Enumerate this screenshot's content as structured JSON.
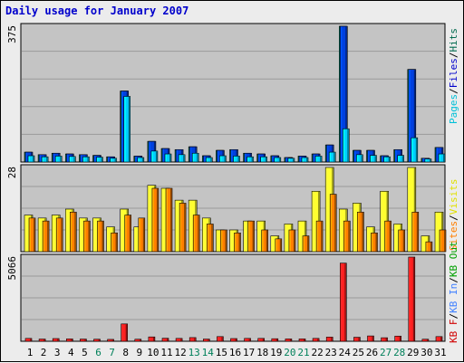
{
  "window": {
    "title": "Daily usage for January 2007"
  },
  "chart_data": [
    {
      "type": "bar",
      "panel": "top",
      "title": "Daily usage for January 2007",
      "ymax_label": "375",
      "ylim": [
        0,
        375
      ],
      "right_labels": [
        {
          "text": "Pages",
          "color": "#00c0d8"
        },
        {
          "text": "/",
          "color": "#000000"
        },
        {
          "text": "Files",
          "color": "#0000cc"
        },
        {
          "text": "/",
          "color": "#000000"
        },
        {
          "text": "Hits",
          "color": "#006a4e"
        }
      ],
      "categories": [
        "1",
        "2",
        "3",
        "4",
        "5",
        "6",
        "7",
        "8",
        "9",
        "10",
        "11",
        "12",
        "13",
        "14",
        "15",
        "16",
        "17",
        "18",
        "19",
        "20",
        "21",
        "22",
        "23",
        "24",
        "25",
        "26",
        "27",
        "28",
        "29",
        "30",
        "31"
      ],
      "series": [
        {
          "name": "Hits",
          "color": "#00805a",
          "values": [
            25,
            18,
            22,
            20,
            18,
            16,
            12,
            195,
            14,
            55,
            35,
            32,
            40,
            15,
            30,
            32,
            22,
            20,
            15,
            10,
            14,
            20,
            45,
            375,
            30,
            30,
            15,
            32,
            255,
            8,
            38
          ]
        },
        {
          "name": "Files",
          "color": "#0040e0",
          "values": [
            25,
            18,
            22,
            20,
            18,
            16,
            12,
            195,
            14,
            55,
            35,
            32,
            40,
            15,
            30,
            32,
            22,
            20,
            15,
            10,
            14,
            20,
            45,
            375,
            30,
            30,
            15,
            32,
            255,
            8,
            38
          ]
        },
        {
          "name": "Pages",
          "color": "#00d0ff",
          "values": [
            15,
            12,
            14,
            13,
            12,
            11,
            8,
            180,
            10,
            28,
            20,
            18,
            22,
            10,
            15,
            14,
            12,
            12,
            10,
            8,
            10,
            14,
            25,
            90,
            18,
            16,
            12,
            16,
            65,
            6,
            20
          ]
        }
      ]
    },
    {
      "type": "bar",
      "panel": "middle",
      "ymax_label": "28",
      "ylim": [
        0,
        28
      ],
      "right_labels": [
        {
          "text": "Visits",
          "color": "#e0e000"
        },
        {
          "text": "/",
          "color": "#000000"
        },
        {
          "text": "Sites",
          "color": "#ff7f00"
        }
      ],
      "categories": [
        "1",
        "2",
        "3",
        "4",
        "5",
        "6",
        "7",
        "8",
        "9",
        "10",
        "11",
        "12",
        "13",
        "14",
        "15",
        "16",
        "17",
        "18",
        "19",
        "20",
        "21",
        "22",
        "23",
        "24",
        "25",
        "26",
        "27",
        "28",
        "29",
        "30",
        "31"
      ],
      "series": [
        {
          "name": "Visits",
          "color": "#ffff30",
          "values": [
            12,
            11,
            12,
            14,
            11,
            11,
            8,
            14,
            8,
            22,
            21,
            17,
            17,
            11,
            7,
            7,
            10,
            10,
            5,
            9,
            10,
            20,
            28,
            14,
            16,
            8,
            20,
            9,
            28,
            5,
            13
          ]
        },
        {
          "name": "Sites",
          "color": "#ff8000",
          "values": [
            11,
            10,
            11,
            13,
            10,
            10,
            6,
            12,
            11,
            21,
            21,
            16,
            12,
            9,
            7,
            6,
            10,
            7,
            4,
            7,
            5,
            10,
            19,
            10,
            13,
            6,
            10,
            7,
            13,
            3,
            7
          ]
        }
      ]
    },
    {
      "type": "bar",
      "panel": "bottom",
      "ymax_label": "5066",
      "ylim": [
        0,
        5066
      ],
      "right_labels": [
        {
          "text": "KB F",
          "color": "#d00000"
        },
        {
          "text": "/",
          "color": "#000000"
        },
        {
          "text": "KB In",
          "color": "#4080ff"
        },
        {
          "text": "/",
          "color": "#000000"
        },
        {
          "text": "KB Out",
          "color": "#00a000"
        }
      ],
      "categories": [
        "1",
        "2",
        "3",
        "4",
        "5",
        "6",
        "7",
        "8",
        "9",
        "10",
        "11",
        "12",
        "13",
        "14",
        "15",
        "16",
        "17",
        "18",
        "19",
        "20",
        "21",
        "22",
        "23",
        "24",
        "25",
        "26",
        "27",
        "28",
        "29",
        "30",
        "31"
      ],
      "weekend_days": [
        "6",
        "7",
        "13",
        "14",
        "20",
        "21",
        "27",
        "28"
      ],
      "series": [
        {
          "name": "KB F",
          "color": "#ff2020",
          "values": [
            120,
            80,
            110,
            90,
            80,
            70,
            60,
            1000,
            70,
            210,
            130,
            120,
            170,
            80,
            230,
            110,
            120,
            120,
            100,
            90,
            90,
            120,
            200,
            4700,
            190,
            270,
            160,
            260,
            5066,
            70,
            230
          ]
        }
      ]
    }
  ]
}
